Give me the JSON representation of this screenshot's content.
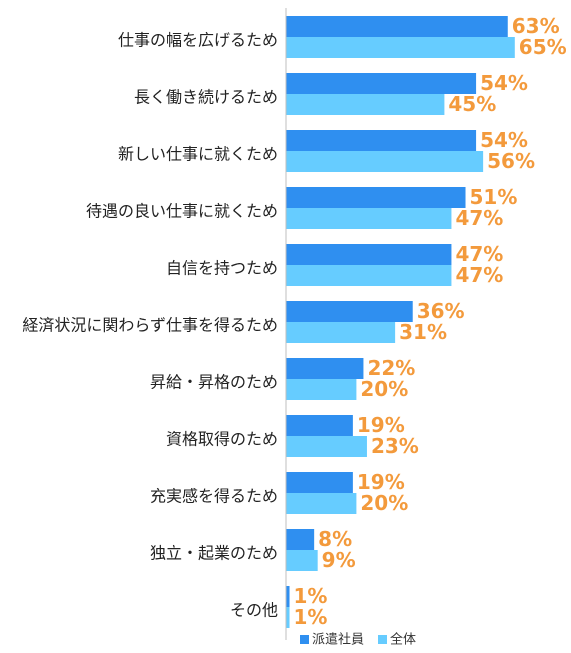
{
  "chart_data": {
    "type": "bar",
    "orientation": "horizontal",
    "categories": [
      "仕事の幅を広げるため",
      "長く働き続けるため",
      "新しい仕事に就くため",
      "待遇の良い仕事に就くため",
      "自信を持つため",
      "経済状況に関わらず仕事を得るため",
      "昇給・昇格のため",
      "資格取得のため",
      "充実感を得るため",
      "独立・起業のため",
      "その他"
    ],
    "series": [
      {
        "name": "派遣社員",
        "color": "#2f8ff0",
        "values": [
          63,
          54,
          54,
          51,
          47,
          36,
          22,
          19,
          19,
          8,
          1
        ],
        "labels": [
          "63%",
          "54%",
          "54%",
          "51%",
          "47%",
          "36%",
          "22%",
          "19%",
          "19%",
          "8%",
          "1%"
        ]
      },
      {
        "name": "全体",
        "color": "#66ccff",
        "values": [
          65,
          45,
          56,
          47,
          47,
          31,
          20,
          23,
          20,
          9,
          1
        ],
        "labels": [
          "65%",
          "45%",
          "56%",
          "47%",
          "47%",
          "31%",
          "20%",
          "23%",
          "20%",
          "9%",
          "1%"
        ]
      }
    ],
    "value_unit": "%",
    "legend_position": "bottom-right",
    "label_color": "#f39a3c",
    "axis_line_color": "#bfbfbf"
  }
}
